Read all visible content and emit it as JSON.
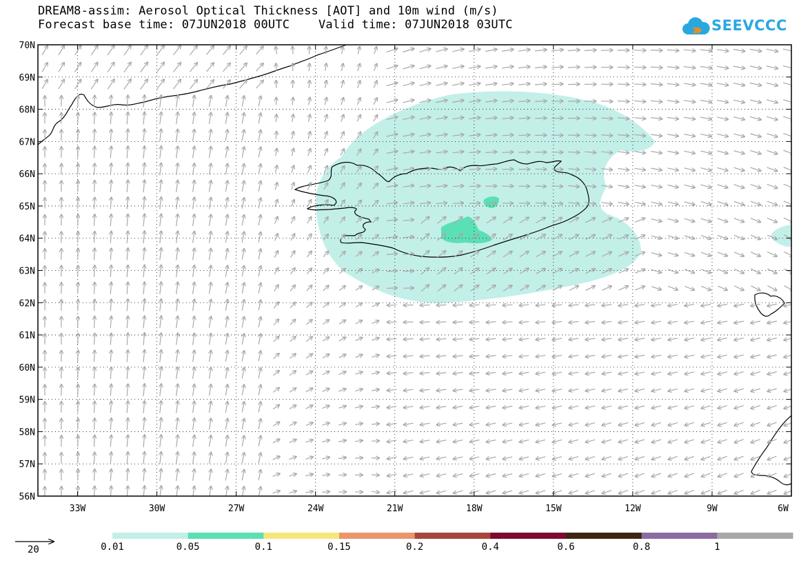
{
  "header": {
    "title_line1": "DREAM8-assim: Aerosol Optical Thickness [AOT] and 10m wind (m/s)",
    "title_line2": "Forecast base time: 07JUN2018 00UTC    Valid time: 07JUN2018 03UTC"
  },
  "logo": {
    "text": "SEEVCCC",
    "icon": "cloud-logo-icon",
    "color": "#29a8e0"
  },
  "map": {
    "lon_range": [
      -34.5,
      -6
    ],
    "lat_range": [
      56,
      70
    ],
    "lat_labels": [
      "70N",
      "69N",
      "68N",
      "67N",
      "66N",
      "65N",
      "64N",
      "63N",
      "62N",
      "61N",
      "60N",
      "59N",
      "58N",
      "57N",
      "56N"
    ],
    "lon_labels": [
      "33W",
      "30W",
      "27W",
      "24W",
      "21W",
      "18W",
      "15W",
      "12W",
      "9W",
      "6W"
    ],
    "grid": "dotted",
    "wind_arrow_color": "#a8a8a8"
  },
  "aot_field": {
    "levels_present": [
      "0.01",
      "0.05"
    ],
    "main_plume_region": "Iceland and surrounding ocean",
    "fill_colors": {
      "0.01": "#c3efe9",
      "0.05": "#5be0b6"
    }
  },
  "wind_scale": {
    "label": "20",
    "units": "m/s"
  },
  "legend": {
    "ticks": [
      "0.01",
      "0.05",
      "0.1",
      "0.15",
      "0.2",
      "0.4",
      "0.6",
      "0.8",
      "1"
    ],
    "colors": [
      "#c3efe9",
      "#5be0b6",
      "#f6e77c",
      "#e9966b",
      "#a8463e",
      "#7d0a2e",
      "#3d2612",
      "#8c6ba2",
      "#a8a8a8"
    ]
  }
}
